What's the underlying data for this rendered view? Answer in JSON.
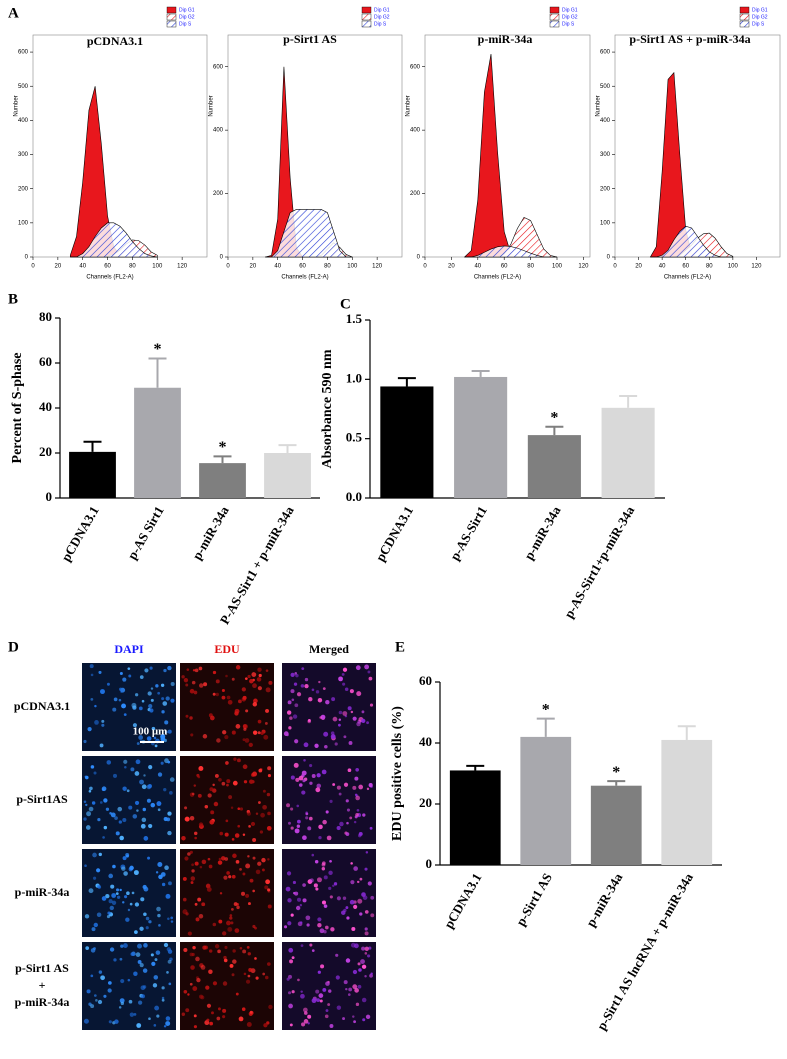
{
  "chart_data": [
    {
      "type": "area",
      "label": "A",
      "title": "pCDNA3.1",
      "xlabel": "Channels (FL2-A)",
      "ylabel": "Number",
      "x": [
        30,
        35,
        40,
        45,
        50,
        55,
        60,
        65,
        70,
        75,
        80,
        85,
        90,
        95,
        100
      ],
      "series": [
        {
          "name": "Dip G1",
          "color": "#e8171d",
          "hatch": false,
          "values": [
            5,
            60,
            220,
            430,
            500,
            330,
            120,
            30,
            5,
            0,
            0,
            0,
            0,
            0,
            0
          ]
        },
        {
          "name": "Dip G2",
          "color": "#e8171d",
          "hatch": true,
          "values": [
            0,
            0,
            0,
            0,
            0,
            0,
            2,
            8,
            20,
            38,
            50,
            48,
            35,
            15,
            5
          ]
        },
        {
          "name": "Dip S",
          "color": "#2b3fd6",
          "hatch": true,
          "values": [
            0,
            0,
            10,
            30,
            60,
            85,
            100,
            100,
            90,
            70,
            45,
            25,
            10,
            3,
            0
          ]
        }
      ],
      "xlim": [
        0,
        140
      ],
      "xticks": [
        0,
        20,
        40,
        60,
        80,
        100,
        120
      ],
      "ylim": [
        0,
        650
      ],
      "yticks": [
        0,
        100,
        200,
        300,
        400,
        500,
        600
      ]
    },
    {
      "type": "area",
      "title": "p-Sirt1 AS",
      "xlabel": "Channels (FL2-A)",
      "ylabel": "Number",
      "x": [
        30,
        35,
        40,
        45,
        50,
        55,
        60,
        65,
        70,
        75,
        80,
        85,
        90,
        95,
        100
      ],
      "series": [
        {
          "name": "Dip G1",
          "color": "#e8171d",
          "hatch": false,
          "values": [
            0,
            5,
            120,
            600,
            250,
            30,
            0,
            0,
            0,
            0,
            0,
            0,
            0,
            0,
            0
          ]
        },
        {
          "name": "Dip G2",
          "color": "#e8171d",
          "hatch": true,
          "values": [
            0,
            0,
            0,
            0,
            0,
            0,
            0,
            0,
            0,
            5,
            25,
            45,
            30,
            8,
            0
          ]
        },
        {
          "name": "Dip S",
          "color": "#2b3fd6",
          "hatch": true,
          "values": [
            0,
            0,
            20,
            80,
            140,
            150,
            150,
            150,
            150,
            150,
            140,
            80,
            20,
            0,
            0
          ]
        }
      ],
      "xlim": [
        0,
        140
      ],
      "xticks": [
        0,
        20,
        40,
        60,
        80,
        100,
        120
      ],
      "ylim": [
        0,
        700
      ],
      "yticks": [
        0,
        200,
        400,
        600
      ]
    },
    {
      "type": "area",
      "title": "p-miR-34a",
      "xlabel": "Channels (FL2-A)",
      "ylabel": "Number",
      "x": [
        30,
        35,
        40,
        45,
        50,
        55,
        60,
        65,
        70,
        75,
        80,
        85,
        90,
        95,
        100
      ],
      "series": [
        {
          "name": "Dip G1",
          "color": "#e8171d",
          "hatch": false,
          "values": [
            0,
            20,
            180,
            520,
            640,
            330,
            80,
            10,
            0,
            0,
            0,
            0,
            0,
            0,
            0
          ]
        },
        {
          "name": "Dip G2",
          "color": "#e8171d",
          "hatch": true,
          "values": [
            0,
            0,
            0,
            0,
            0,
            0,
            10,
            40,
            90,
            125,
            115,
            70,
            25,
            5,
            0
          ]
        },
        {
          "name": "Dip S",
          "color": "#2b3fd6",
          "hatch": true,
          "values": [
            0,
            0,
            5,
            15,
            25,
            32,
            35,
            33,
            28,
            20,
            12,
            5,
            0,
            0,
            0
          ]
        }
      ],
      "xlim": [
        0,
        125
      ],
      "xticks": [
        0,
        20,
        40,
        60,
        80,
        100,
        120
      ],
      "ylim": [
        0,
        700
      ],
      "yticks": [
        0,
        200,
        400,
        600
      ]
    },
    {
      "type": "area",
      "title": "p-Sirt1 AS + p-miR-34a",
      "xlabel": "Channels (FL2-A)",
      "ylabel": "Number",
      "x": [
        30,
        35,
        40,
        45,
        50,
        55,
        60,
        65,
        70,
        75,
        80,
        85,
        90,
        95,
        100
      ],
      "series": [
        {
          "name": "Dip G1",
          "color": "#e8171d",
          "hatch": false,
          "values": [
            0,
            30,
            250,
            520,
            540,
            300,
            80,
            10,
            0,
            0,
            0,
            0,
            0,
            0,
            0
          ]
        },
        {
          "name": "Dip G2",
          "color": "#e8171d",
          "hatch": true,
          "values": [
            0,
            0,
            0,
            0,
            0,
            5,
            20,
            35,
            55,
            68,
            70,
            55,
            30,
            10,
            2
          ]
        },
        {
          "name": "Dip S",
          "color": "#2b3fd6",
          "hatch": true,
          "values": [
            0,
            0,
            5,
            20,
            50,
            75,
            90,
            85,
            60,
            35,
            15,
            5,
            0,
            0,
            0
          ]
        }
      ],
      "xlim": [
        0,
        140
      ],
      "xticks": [
        0,
        20,
        40,
        60,
        80,
        100,
        120
      ],
      "ylim": [
        0,
        650
      ],
      "yticks": [
        0,
        100,
        200,
        300,
        400,
        500,
        600
      ]
    },
    {
      "type": "bar",
      "label": "B",
      "ylabel": "Percent of S-phase",
      "categories": [
        "pCDNA3.1",
        "p-AS Sirt1",
        "p-miR-34a",
        "P-AS-Sirt1 + p-miR-34a"
      ],
      "values": [
        20.5,
        49,
        15.5,
        20
      ],
      "errors": [
        4.5,
        13,
        3,
        3.5
      ],
      "annotations": [
        null,
        "*",
        "*",
        null
      ],
      "colors": [
        "#000000",
        "#a8a8ad",
        "#7f7f7f",
        "#d9d9d9"
      ],
      "ylim": [
        0,
        80
      ],
      "yticks": [
        0,
        20,
        40,
        60,
        80
      ]
    },
    {
      "type": "bar",
      "label": "C",
      "ylabel": "Absorbance 590 nm",
      "categories": [
        "pCDNA3.1",
        "p-AS-Sirt1",
        "p-miR-34a",
        "p-AS-Sirt1+p-miR-34a"
      ],
      "values": [
        0.94,
        1.02,
        0.53,
        0.76
      ],
      "errors": [
        0.07,
        0.05,
        0.07,
        0.1
      ],
      "annotations": [
        null,
        null,
        "*",
        null
      ],
      "colors": [
        "#000000",
        "#a8a8ad",
        "#7f7f7f",
        "#d9d9d9"
      ],
      "ylim": [
        0,
        1.5
      ],
      "yticks": [
        {
          "value": 0,
          "label": "0.0"
        },
        {
          "value": 0.5,
          "label": "0.5"
        },
        {
          "value": 1,
          "label": "1.0"
        },
        {
          "value": 1.5,
          "label": "1.5"
        }
      ]
    },
    {
      "type": "bar",
      "label": "E",
      "ylabel": "EDU positive cells (%)",
      "categories": [
        "pCDNA3.1",
        "p-Sirt1 AS",
        "p-miR-34a",
        "p-Sirt1 AS lncRNA + p-miR-34a"
      ],
      "values": [
        31,
        42,
        26,
        41
      ],
      "errors": [
        1.5,
        6,
        1.5,
        4.5
      ],
      "annotations": [
        null,
        "*",
        "*",
        null
      ],
      "colors": [
        "#000000",
        "#a8a8ad",
        "#7f7f7f",
        "#d9d9d9"
      ],
      "ylim": [
        0,
        60
      ],
      "yticks": [
        0,
        20,
        40,
        60
      ]
    }
  ],
  "micrographs": {
    "label": "D",
    "columns": [
      {
        "text": "DAPI",
        "color": "#1a1aff"
      },
      {
        "text": "EDU",
        "color": "#e01010"
      },
      {
        "text": "Merged",
        "color": "#000000"
      }
    ],
    "rows": [
      [
        "pCDNA3.1"
      ],
      [
        "p-Sirt1AS"
      ],
      [
        "p-miR-34a"
      ],
      [
        "p-Sirt1 AS",
        "+",
        "p-miR-34a"
      ]
    ],
    "scale_bar": "100 μm"
  }
}
